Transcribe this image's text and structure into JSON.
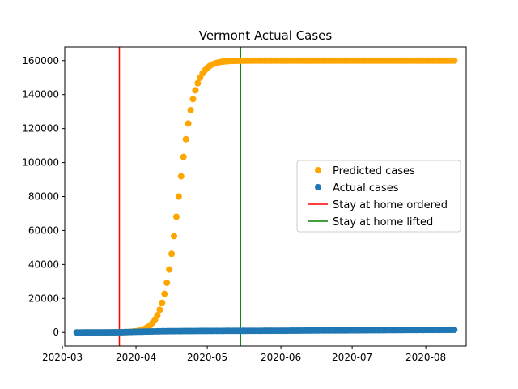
{
  "chart_data": {
    "type": "scatter",
    "title": "Vermont Actual Cases",
    "xlabel": "",
    "ylabel": "",
    "x_axis": {
      "type": "date",
      "range": [
        "2020-03-02",
        "2020-08-18"
      ],
      "ticks": [
        "2020-03-01",
        "2020-04-01",
        "2020-05-01",
        "2020-06-01",
        "2020-07-01",
        "2020-08-01"
      ],
      "tick_labels": [
        "2020-03",
        "2020-04",
        "2020-05",
        "2020-06",
        "2020-07",
        "2020-08"
      ]
    },
    "y_axis": {
      "range": [
        -8000,
        168000
      ],
      "ticks": [
        0,
        20000,
        40000,
        60000,
        80000,
        100000,
        120000,
        140000,
        160000
      ],
      "tick_labels": [
        "0",
        "20000",
        "40000",
        "60000",
        "80000",
        "100000",
        "120000",
        "140000",
        "160000"
      ]
    },
    "grid": false,
    "legend": {
      "placement": "center-right",
      "entries": [
        {
          "label": "Predicted cases",
          "kind": "marker",
          "color": "#ffa500"
        },
        {
          "label": "Actual cases",
          "kind": "marker",
          "color": "#1f77b4"
        },
        {
          "label": "Stay at home ordered",
          "kind": "line",
          "color": "#ff0000"
        },
        {
          "label": "Stay at home lifted",
          "kind": "line",
          "color": "#008000"
        }
      ]
    },
    "vertical_lines": [
      {
        "name": "Stay at home ordered",
        "x": "2020-03-25",
        "color": "#ff0000"
      },
      {
        "name": "Stay at home lifted",
        "x": "2020-05-15",
        "color": "#008000"
      }
    ],
    "series": [
      {
        "name": "Predicted cases",
        "color": "#ffa500",
        "x_start": "2020-03-07",
        "x_end": "2020-08-13",
        "step_days": 1,
        "model": "logistic",
        "capacity": 160000,
        "midpoint": "2020-04-19",
        "rate_per_day": 0.3
      },
      {
        "name": "Actual cases",
        "color": "#1f77b4",
        "x_start": "2020-03-07",
        "x_end": "2020-08-13",
        "step_days": 1,
        "points": [
          [
            "2020-03-07",
            0
          ],
          [
            "2020-03-25",
            100
          ],
          [
            "2020-04-05",
            500
          ],
          [
            "2020-04-15",
            750
          ],
          [
            "2020-05-01",
            880
          ],
          [
            "2020-05-15",
            940
          ],
          [
            "2020-06-01",
            1000
          ],
          [
            "2020-06-15",
            1130
          ],
          [
            "2020-07-01",
            1220
          ],
          [
            "2020-07-15",
            1330
          ],
          [
            "2020-07-24",
            1400
          ],
          [
            "2020-08-01",
            1450
          ],
          [
            "2020-08-13",
            1510
          ]
        ]
      }
    ]
  }
}
